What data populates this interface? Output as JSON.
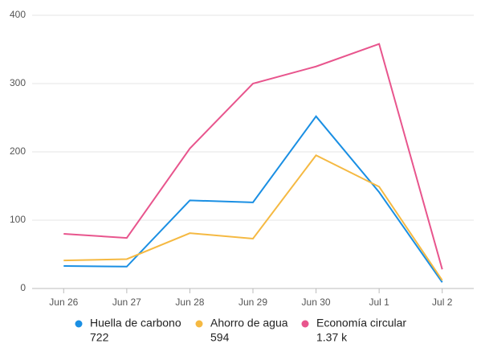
{
  "chart_data": {
    "type": "line",
    "categories": [
      "Jun 26",
      "Jun 27",
      "Jun 28",
      "Jun 29",
      "Jun 30",
      "Jul 1",
      "Jul 2"
    ],
    "series": [
      {
        "name": "Huella de carbono",
        "total": "722",
        "color": "#1a8fe3",
        "values": [
          33,
          32,
          129,
          126,
          252,
          141,
          9
        ]
      },
      {
        "name": "Ahorro de agua",
        "total": "594",
        "color": "#f5b942",
        "values": [
          41,
          43,
          81,
          73,
          195,
          149,
          12
        ]
      },
      {
        "name": "Economía circular",
        "total": "1.37 k",
        "color": "#e8558d",
        "values": [
          80,
          74,
          205,
          300,
          325,
          358,
          28
        ]
      }
    ],
    "ylim": [
      0,
      400
    ],
    "yticks": [
      0,
      100,
      200,
      300,
      400
    ],
    "grid": true
  }
}
